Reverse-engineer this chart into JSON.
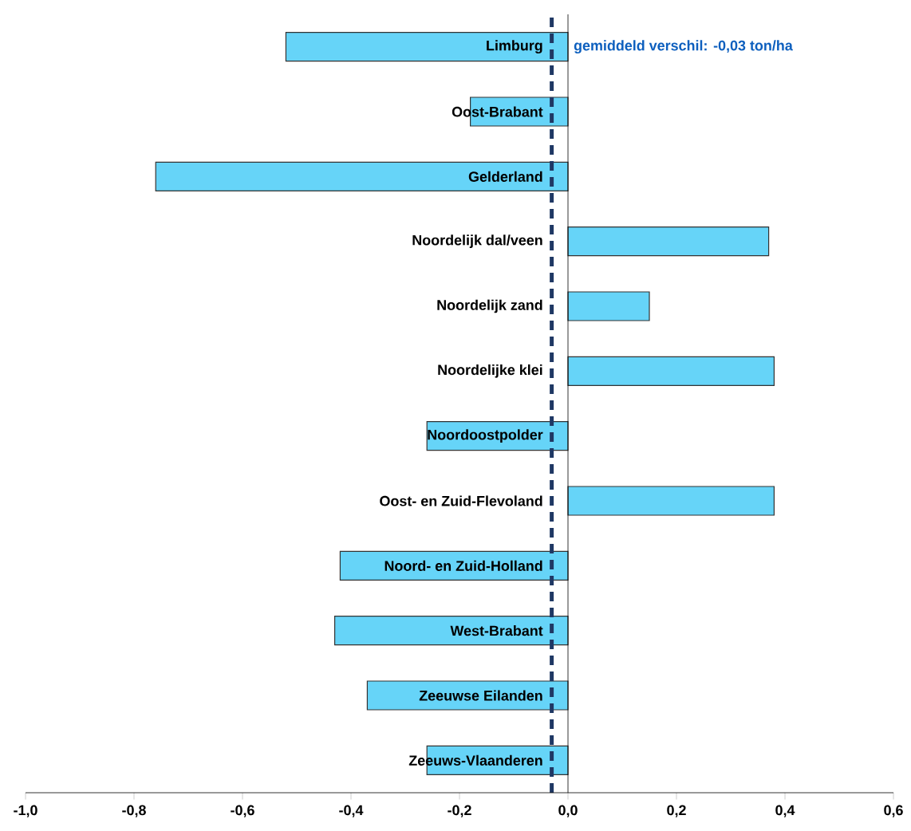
{
  "chart_data": {
    "type": "bar",
    "orientation": "horizontal",
    "categories": [
      "Limburg",
      "Oost-Brabant",
      "Gelderland",
      "Noordelijk dal/veen",
      "Noordelijk zand",
      "Noordelijke klei",
      "Noordoostpolder",
      "Oost- en Zuid-Flevoland",
      "Noord- en Zuid-Holland",
      "West-Brabant",
      "Zeeuwse Eilanden",
      "Zeeuws-Vlaanderen"
    ],
    "values": [
      -0.52,
      -0.18,
      -0.76,
      0.37,
      0.15,
      0.38,
      -0.26,
      0.38,
      -0.42,
      -0.43,
      -0.37,
      -0.26
    ],
    "color": "#66d4f8",
    "xlim": [
      -1.0,
      0.6
    ],
    "xticks": [
      {
        "value": -1.0,
        "label": "-1,0"
      },
      {
        "value": -0.8,
        "label": "-0,8"
      },
      {
        "value": -0.6,
        "label": "-0,6"
      },
      {
        "value": -0.4,
        "label": "-0,4"
      },
      {
        "value": -0.2,
        "label": "-0,2"
      },
      {
        "value": 0.0,
        "label": "0,0"
      },
      {
        "value": 0.2,
        "label": "0,2"
      },
      {
        "value": 0.4,
        "label": "0,4"
      },
      {
        "value": 0.6,
        "label": "0,6"
      }
    ],
    "ref_lines": [
      {
        "axis": "x",
        "value": -0.03,
        "label": "gemiddeld verschil: -0,03 ton/ha",
        "color": "#1f3864",
        "line_style": "dashed"
      }
    ]
  }
}
